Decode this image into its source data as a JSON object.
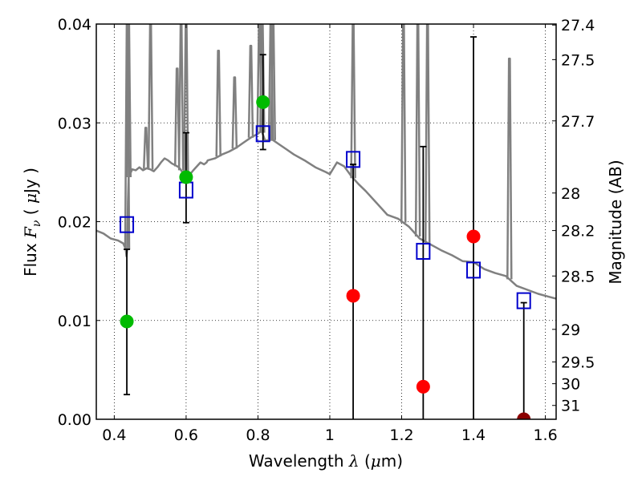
{
  "chart_data": {
    "type": "scatter",
    "xlabel": "Wavelength  λ (μm)",
    "ylabel": "Flux  Fν ( μJy )",
    "y2label": "Magnitude (AB)",
    "xlim": [
      0.35,
      1.63
    ],
    "ylim": [
      0.0,
      0.04
    ],
    "x_ticks": [
      0.4,
      0.6,
      0.8,
      1.0,
      1.2,
      1.4,
      1.6
    ],
    "x_tick_labels": [
      "0.4",
      "0.6",
      "0.8",
      "1",
      "1.2",
      "1.4",
      "1.6"
    ],
    "y_ticks": [
      0.0,
      0.01,
      0.02,
      0.03,
      0.04
    ],
    "y_tick_labels": [
      "0.00",
      "0.01",
      "0.02",
      "0.03",
      "0.04"
    ],
    "y2_ticks": [
      {
        "label": "27.4",
        "flux": 0.0399
      },
      {
        "label": "27.5",
        "flux": 0.0364
      },
      {
        "label": "27.7",
        "flux": 0.0302
      },
      {
        "label": "28",
        "flux": 0.0229
      },
      {
        "label": "28.2",
        "flux": 0.0191
      },
      {
        "label": "28.5",
        "flux": 0.0145
      },
      {
        "label": "29",
        "flux": 0.0091
      },
      {
        "label": "29.5",
        "flux": 0.0058
      },
      {
        "label": "30",
        "flux": 0.0036
      },
      {
        "label": "31",
        "flux": 0.0014
      }
    ],
    "grid": true,
    "colors": {
      "model": "#808080",
      "detection": "#00bb00",
      "nondetection": "#ff0000",
      "last_point": "#8b0000",
      "model_box": "#0000cc",
      "errorbar": "#000000"
    },
    "observed_points": [
      {
        "x": 0.435,
        "y": 0.0099,
        "err_low": 0.0025,
        "err_high": 0.0172,
        "color": "detection"
      },
      {
        "x": 0.6,
        "y": 0.0245,
        "err_low": 0.0199,
        "err_high": 0.029,
        "color": "detection"
      },
      {
        "x": 0.814,
        "y": 0.0321,
        "err_low": 0.0273,
        "err_high": 0.0369,
        "color": "detection"
      },
      {
        "x": 1.065,
        "y": 0.0125,
        "err_low": 0.0,
        "err_high": 0.0258,
        "color": "nondetection"
      },
      {
        "x": 1.26,
        "y": 0.0033,
        "err_low": 0.0,
        "err_high": 0.0276,
        "color": "nondetection"
      },
      {
        "x": 1.4,
        "y": 0.0185,
        "err_low": 0.0,
        "err_high": 0.0387,
        "color": "nondetection"
      },
      {
        "x": 1.54,
        "y": 0.0,
        "err_low": 0.0,
        "err_high": 0.0118,
        "color": "last_point"
      }
    ],
    "model_fluxes": [
      {
        "x": 0.435,
        "y": 0.0197
      },
      {
        "x": 0.6,
        "y": 0.0232
      },
      {
        "x": 0.814,
        "y": 0.0289
      },
      {
        "x": 1.065,
        "y": 0.0263
      },
      {
        "x": 1.26,
        "y": 0.017
      },
      {
        "x": 1.4,
        "y": 0.0151
      },
      {
        "x": 1.54,
        "y": 0.012
      }
    ],
    "model_spectrum": {
      "x": [
        0.35,
        0.37,
        0.39,
        0.41,
        0.425,
        0.432,
        0.434,
        0.436,
        0.438,
        0.44,
        0.45,
        0.46,
        0.47,
        0.48,
        0.49,
        0.5,
        0.51,
        0.52,
        0.53,
        0.54,
        0.55,
        0.56,
        0.57,
        0.58,
        0.59,
        0.6,
        0.62,
        0.64,
        0.65,
        0.657,
        0.66,
        0.68,
        0.7,
        0.72,
        0.74,
        0.76,
        0.78,
        0.8,
        0.81,
        0.82,
        0.84,
        0.86,
        0.88,
        0.9,
        0.93,
        0.96,
        0.99,
        1.0,
        1.02,
        1.04,
        1.06,
        1.08,
        1.1,
        1.13,
        1.16,
        1.19,
        1.22,
        1.25,
        1.28,
        1.31,
        1.34,
        1.37,
        1.4,
        1.43,
        1.46,
        1.49,
        1.52,
        1.55,
        1.58,
        1.61,
        1.63
      ],
      "y": [
        0.0191,
        0.0188,
        0.0183,
        0.0181,
        0.0178,
        0.0172,
        0.0165,
        0.0172,
        0.022,
        0.0245,
        0.0253,
        0.0252,
        0.0255,
        0.0252,
        0.0254,
        0.0253,
        0.0251,
        0.0255,
        0.026,
        0.0264,
        0.0262,
        0.0259,
        0.0257,
        0.0255,
        0.025,
        0.0243,
        0.0252,
        0.026,
        0.0258,
        0.026,
        0.0262,
        0.0264,
        0.0268,
        0.0271,
        0.0275,
        0.028,
        0.0285,
        0.0289,
        0.0292,
        0.0282,
        0.0283,
        0.0278,
        0.0273,
        0.0268,
        0.0262,
        0.0255,
        0.025,
        0.0248,
        0.026,
        0.0256,
        0.0246,
        0.0238,
        0.0231,
        0.0219,
        0.0207,
        0.0203,
        0.0195,
        0.0183,
        0.0177,
        0.0171,
        0.0166,
        0.016,
        0.0159,
        0.0152,
        0.0148,
        0.0145,
        0.0135,
        0.0131,
        0.0127,
        0.0124,
        0.0122
      ]
    },
    "emission_lines": [
      {
        "x": 0.436,
        "peak": 0.04
      },
      {
        "x": 0.44,
        "peak": 0.04
      },
      {
        "x": 0.488,
        "peak": 0.0295
      },
      {
        "x": 0.501,
        "peak": 0.04
      },
      {
        "x": 0.575,
        "peak": 0.0355
      },
      {
        "x": 0.586,
        "peak": 0.04
      },
      {
        "x": 0.6,
        "peak": 0.04
      },
      {
        "x": 0.69,
        "peak": 0.0373
      },
      {
        "x": 0.735,
        "peak": 0.0346
      },
      {
        "x": 0.78,
        "peak": 0.0378
      },
      {
        "x": 0.804,
        "peak": 0.04
      },
      {
        "x": 0.812,
        "peak": 0.04
      },
      {
        "x": 0.836,
        "peak": 0.04
      },
      {
        "x": 0.842,
        "peak": 0.04
      },
      {
        "x": 1.065,
        "peak": 0.04
      },
      {
        "x": 1.205,
        "peak": 0.04
      },
      {
        "x": 1.245,
        "peak": 0.04
      },
      {
        "x": 1.272,
        "peak": 0.04
      },
      {
        "x": 1.5,
        "peak": 0.0365
      }
    ]
  }
}
